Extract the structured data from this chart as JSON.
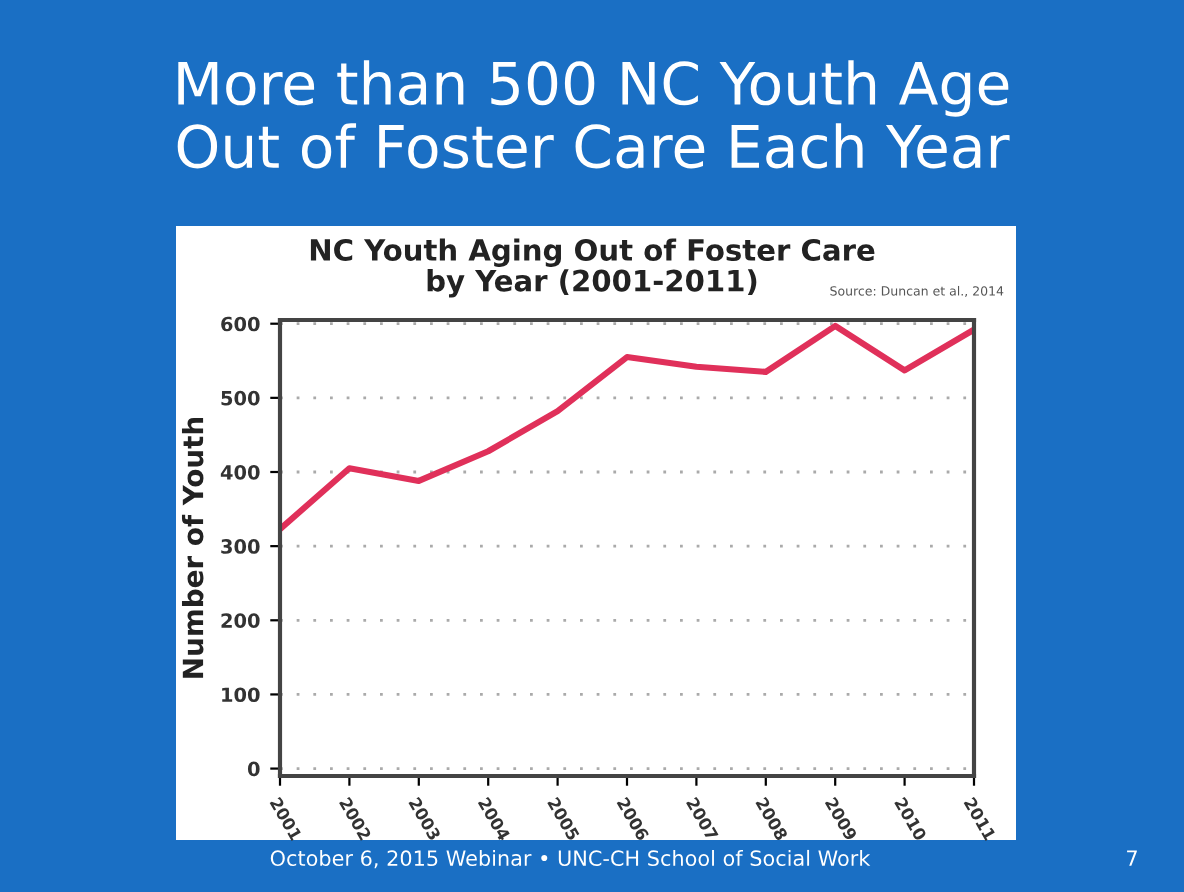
{
  "chart_data": {
    "type": "line",
    "title": "More than 500 NC Youth Age\nOut of Foster Care Each Year",
    "subtitle": "NC Youth Aging Out of Foster Care\nby Year (2001-2011)",
    "ylabel": "Number of Youth",
    "annotations": [
      "Source: Duncan et al., 2014",
      "October 6, 2015 Webinar • UNC-CH School of Social Work",
      "7"
    ],
    "categories": [
      "2001",
      "2002",
      "2003",
      "2004",
      "2005",
      "2006",
      "2007",
      "2008",
      "2009",
      "2010",
      "2011"
    ],
    "series": [
      {
        "color": "#e0305a",
        "values": [
          323,
          405,
          388,
          428,
          482,
          555,
          542,
          535,
          597,
          537,
          592
        ]
      }
    ],
    "ylim": [
      -10,
      605
    ],
    "yticks": [
      0,
      100,
      200,
      300,
      400,
      500,
      600
    ],
    "grid": "y",
    "legend": false,
    "marker": "none",
    "line_style": "solid"
  }
}
